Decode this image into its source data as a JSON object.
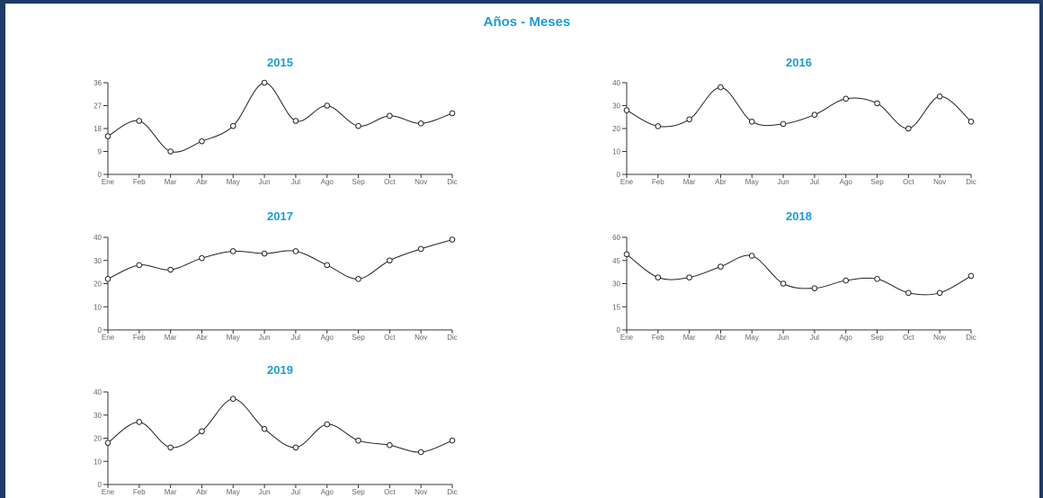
{
  "page_title": "Años - Meses",
  "months": [
    "Ene",
    "Feb",
    "Mar",
    "Abr",
    "May",
    "Jun",
    "Jul",
    "Ago",
    "Sep",
    "Oct",
    "Nov",
    "Dic"
  ],
  "colors": {
    "frame": "#1e3a66",
    "title": "#1a9bd7",
    "line": "#222222"
  },
  "chart_data": [
    {
      "type": "line",
      "title": "2015",
      "categories": [
        "Ene",
        "Feb",
        "Mar",
        "Abr",
        "May",
        "Jun",
        "Jul",
        "Ago",
        "Sep",
        "Oct",
        "Nov",
        "Dic"
      ],
      "values": [
        15,
        21,
        9,
        13,
        19,
        36,
        21,
        27,
        19,
        23,
        20,
        24
      ],
      "ylim": [
        0,
        36
      ],
      "yticks": [
        0,
        9,
        18,
        27,
        36
      ]
    },
    {
      "type": "line",
      "title": "2016",
      "categories": [
        "Ene",
        "Feb",
        "Mar",
        "Abr",
        "May",
        "Jun",
        "Jul",
        "Ago",
        "Sep",
        "Oct",
        "Nov",
        "Dic"
      ],
      "values": [
        28,
        21,
        24,
        38,
        23,
        22,
        26,
        33,
        31,
        20,
        34,
        23
      ],
      "ylim": [
        0,
        40
      ],
      "yticks": [
        0,
        10,
        20,
        30,
        40
      ]
    },
    {
      "type": "line",
      "title": "2017",
      "categories": [
        "Ene",
        "Feb",
        "Mar",
        "Abr",
        "May",
        "Jun",
        "Jul",
        "Ago",
        "Sep",
        "Oct",
        "Nov",
        "Dic"
      ],
      "values": [
        22,
        28,
        26,
        31,
        34,
        33,
        34,
        28,
        22,
        30,
        35,
        39
      ],
      "ylim": [
        0,
        40
      ],
      "yticks": [
        0,
        10,
        20,
        30,
        40
      ]
    },
    {
      "type": "line",
      "title": "2018",
      "categories": [
        "Ene",
        "Feb",
        "Mar",
        "Abr",
        "May",
        "Jun",
        "Jul",
        "Ago",
        "Sep",
        "Oct",
        "Nov",
        "Dic"
      ],
      "values": [
        49,
        34,
        34,
        41,
        48,
        30,
        27,
        32,
        33,
        24,
        24,
        35
      ],
      "ylim": [
        0,
        60
      ],
      "yticks": [
        0,
        15,
        30,
        45,
        60
      ]
    },
    {
      "type": "line",
      "title": "2019",
      "categories": [
        "Ene",
        "Feb",
        "Mar",
        "Abr",
        "May",
        "Jun",
        "Jul",
        "Ago",
        "Sep",
        "Oct",
        "Nov",
        "Dic"
      ],
      "values": [
        18,
        27,
        16,
        23,
        37,
        24,
        16,
        26,
        19,
        17,
        14,
        19
      ],
      "ylim": [
        0,
        40
      ],
      "yticks": [
        0,
        10,
        20,
        30,
        40
      ]
    }
  ]
}
